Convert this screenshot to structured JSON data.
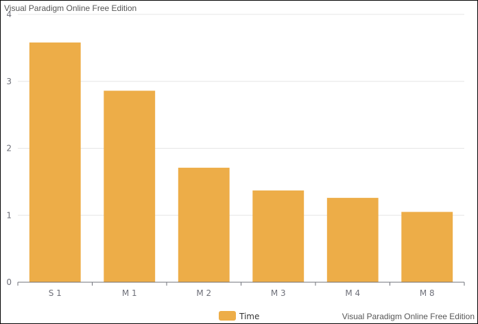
{
  "watermark": {
    "top": "Visual Paradigm Online Free Edition",
    "bottom": "Visual Paradigm Online Free Edition"
  },
  "colors": {
    "bar": "#edad48",
    "grid": "#e6e6e6",
    "axis": "#6e7079"
  },
  "chart_data": {
    "type": "bar",
    "categories": [
      "S 1",
      "M 1",
      "M 2",
      "M 3",
      "M 4",
      "M 8"
    ],
    "series": [
      {
        "name": "Time",
        "values": [
          3.58,
          2.86,
          1.71,
          1.37,
          1.26,
          1.05
        ]
      }
    ],
    "ylim": [
      0,
      4
    ],
    "yticks": [
      0,
      1,
      2,
      3,
      4
    ],
    "grid": true,
    "legend": "bottom-center"
  }
}
